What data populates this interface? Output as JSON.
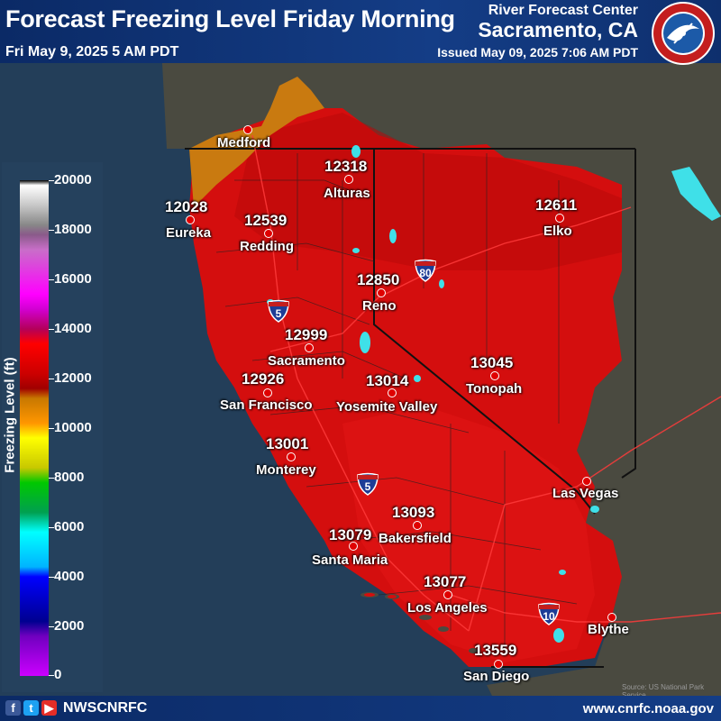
{
  "header": {
    "title": "Forecast Freezing Level Friday Morning",
    "valid_time": "Fri May 9, 2025 5 AM PDT",
    "rfc_line1": "River Forecast Center",
    "rfc_line2": "Sacramento, CA",
    "issued": "Issued May 09, 2025 7:06 AM PDT",
    "logo_text": "NATIONAL WEATHER SERVICE"
  },
  "legend": {
    "title": "Freezing Level (ft)",
    "ticks": [
      "20000",
      "18000",
      "16000",
      "14000",
      "12000",
      "10000",
      "8000",
      "6000",
      "4000",
      "2000",
      "0"
    ]
  },
  "stations": [
    {
      "city": "Medford",
      "value": ""
    },
    {
      "city": "Alturas",
      "value": "12318"
    },
    {
      "city": "Eureka",
      "value": "12028"
    },
    {
      "city": "Redding",
      "value": "12539"
    },
    {
      "city": "Elko",
      "value": "12611"
    },
    {
      "city": "Reno",
      "value": "12850"
    },
    {
      "city": "Sacramento",
      "value": "12999"
    },
    {
      "city": "San Francisco",
      "value": "12926"
    },
    {
      "city": "Yosemite Valley",
      "value": "13014"
    },
    {
      "city": "Tonopah",
      "value": "13045"
    },
    {
      "city": "Monterey",
      "value": "13001"
    },
    {
      "city": "Las Vegas",
      "value": ""
    },
    {
      "city": "Bakersfield",
      "value": "13093"
    },
    {
      "city": "Santa Maria",
      "value": "13079"
    },
    {
      "city": "Los Angeles",
      "value": "13077"
    },
    {
      "city": "Blythe",
      "value": ""
    },
    {
      "city": "San Diego",
      "value": "13559"
    }
  ],
  "highways": [
    "5",
    "80",
    "5",
    "10"
  ],
  "credit": "Source: US National Park Service",
  "footer": {
    "handle": "NWSCNRFC",
    "website": "www.cnrfc.noaa.gov",
    "icons": [
      "facebook-icon",
      "twitter-icon",
      "youtube-icon"
    ]
  },
  "colors": {
    "ocean": "#243f5a",
    "land": "#4a4a40",
    "freezing_12000_14000": "#dc0f0f",
    "freezing_10000_12000": "#c97a10",
    "header_bg": "#0b2a66"
  }
}
